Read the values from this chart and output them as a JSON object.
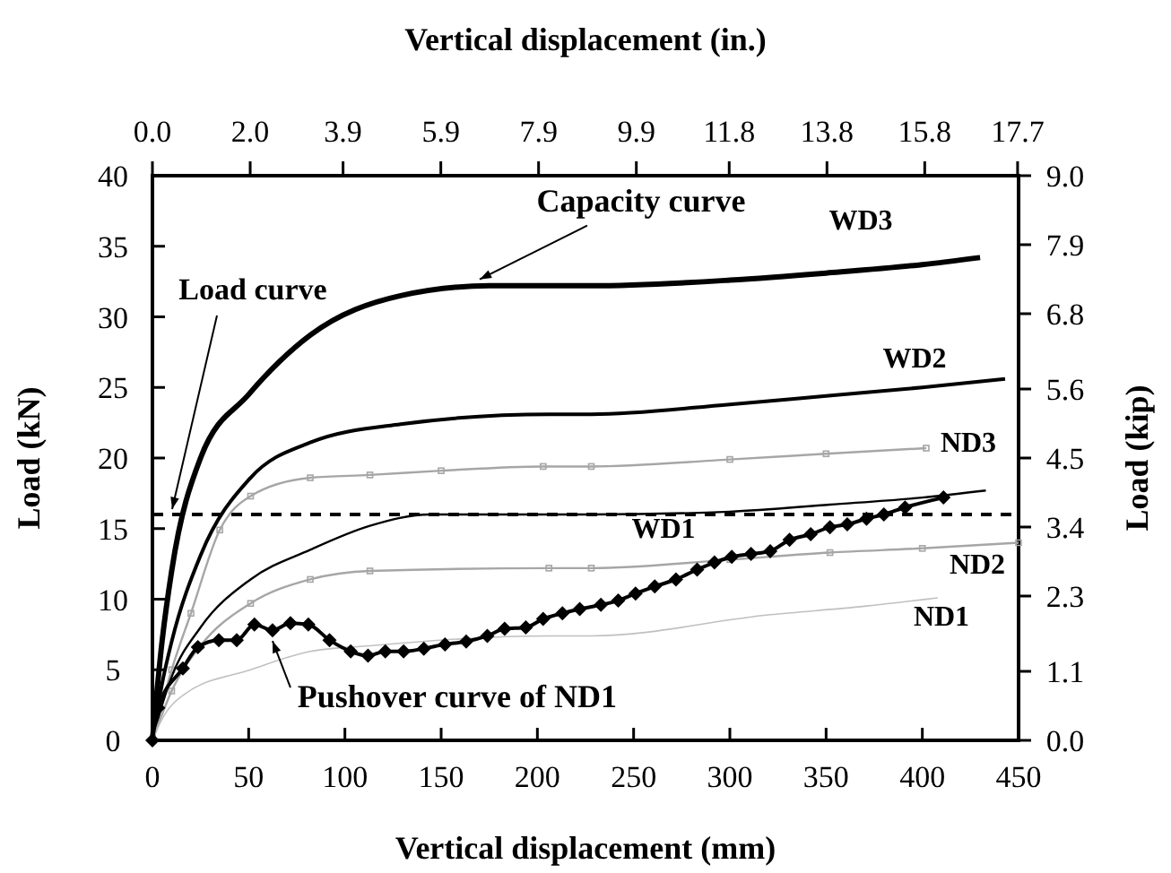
{
  "chart_data": {
    "type": "line",
    "xlabel": "Vertical displacement (mm)",
    "ylabel": "Load (kN)",
    "x2label": "Vertical displacement (in.)",
    "y2label": "Load (kip)",
    "xlim": [
      0,
      450
    ],
    "xticks": [
      0,
      50,
      100,
      150,
      200,
      250,
      300,
      350,
      400,
      450
    ],
    "ylim": [
      0,
      40
    ],
    "yticks": [
      0,
      5,
      10,
      15,
      20,
      25,
      30,
      35,
      40
    ],
    "x2lim": [
      0,
      17.72
    ],
    "x2ticks": [
      {
        "value": 0,
        "label": "0.0"
      },
      {
        "value": 2,
        "label": "2.0"
      },
      3.9,
      5.9,
      7.9,
      9.9,
      11.8,
      13.8,
      15.8,
      17.7
    ],
    "y2lim": [
      0,
      9
    ],
    "y2ticks": [
      {
        "value": 0,
        "label": "0.0"
      },
      1.1,
      2.3,
      3.4,
      4.5,
      5.6,
      6.8,
      7.9,
      {
        "value": 9,
        "label": "9.0"
      }
    ],
    "grid": false,
    "series": [
      {
        "name": "WD3",
        "color": "#000000",
        "x": [
          0,
          5,
          10,
          25,
          50,
          82,
          129,
          175,
          228,
          300,
          350,
          400,
          430
        ],
        "values": [
          0,
          7,
          12,
          20,
          24.5,
          28.7,
          31.5,
          32.2,
          32.2,
          32.6,
          33.1,
          33.7,
          34.2
        ]
      },
      {
        "name": "WD2",
        "color": "#000000",
        "x": [
          0,
          5,
          10,
          25,
          51,
          82,
          129,
          206,
          228,
          300,
          350,
          400,
          443
        ],
        "values": [
          0,
          4,
          7,
          13.1,
          18.6,
          21.1,
          22.4,
          23.1,
          23.1,
          23.8,
          24.4,
          25,
          25.6
        ]
      },
      {
        "name": "ND3",
        "color": "#a6a6a6",
        "marker": "square",
        "x": [
          0,
          10,
          20,
          35,
          51,
          82,
          113,
          150,
          203,
          228,
          300,
          350,
          402
        ],
        "values": [
          0,
          5,
          9,
          14.9,
          17.3,
          18.6,
          18.8,
          19.1,
          19.4,
          19.4,
          19.9,
          20.3,
          20.7
        ]
      },
      {
        "name": "WD1",
        "color": "#000000",
        "x": [
          0,
          5,
          10,
          25,
          51,
          82,
          113,
          144,
          206,
          228,
          300,
          352,
          400,
          433
        ],
        "values": [
          0,
          2.5,
          4.5,
          8,
          11.4,
          13.5,
          15.2,
          16,
          16,
          16,
          16.2,
          16.7,
          17.2,
          17.7
        ]
      },
      {
        "name": "ND2",
        "color": "#a6a6a6",
        "marker": "square",
        "x": [
          0,
          10,
          25,
          51,
          82,
          113,
          206,
          228,
          300,
          352,
          400,
          450
        ],
        "values": [
          0,
          3.5,
          6.7,
          9.7,
          11.4,
          12,
          12.2,
          12.2,
          12.8,
          13.3,
          13.6,
          14
        ]
      },
      {
        "name": "ND1",
        "color": "#c0c0c0",
        "x": [
          0,
          5,
          17,
          51,
          82,
          113,
          206,
          228,
          321,
          370,
          408
        ],
        "values": [
          0,
          1.5,
          3.3,
          5,
          6.3,
          6.7,
          7.4,
          7.4,
          8.9,
          9.5,
          10.1
        ]
      },
      {
        "color": "#000000",
        "marker": "diamond",
        "x": [
          0,
          3,
          15.8,
          23.6,
          34.5,
          43.8,
          53,
          62.4,
          71.7,
          81,
          92,
          103,
          112,
          121,
          130.5,
          141,
          152,
          163,
          174,
          183,
          194,
          203,
          213,
          222,
          233,
          242,
          251,
          261,
          272,
          283,
          292,
          301,
          311,
          321,
          331,
          342,
          352,
          361,
          371,
          380,
          391,
          411
        ],
        "values": [
          0,
          2.3,
          5.1,
          6.6,
          7.1,
          7.1,
          8.2,
          7.8,
          8.3,
          8.2,
          7.1,
          6.3,
          6,
          6.3,
          6.3,
          6.5,
          6.8,
          7,
          7.4,
          7.9,
          8,
          8.6,
          9,
          9.3,
          9.6,
          9.9,
          10.4,
          10.9,
          11.4,
          12.1,
          12.6,
          13,
          13.2,
          13.4,
          14.2,
          14.6,
          15.1,
          15.3,
          15.7,
          16,
          16.5,
          17.2
        ]
      }
    ],
    "ref_lines": [
      {
        "axis": "y",
        "value": 16,
        "label": "Load curve",
        "line_style": "dashed",
        "color": "#000000"
      }
    ],
    "annotations": [
      {
        "text": "Capacity curve",
        "x": 170,
        "y": 32.4
      },
      {
        "text": "Pushover curve of ND1",
        "x": 62.4,
        "y": 7.8
      }
    ]
  }
}
